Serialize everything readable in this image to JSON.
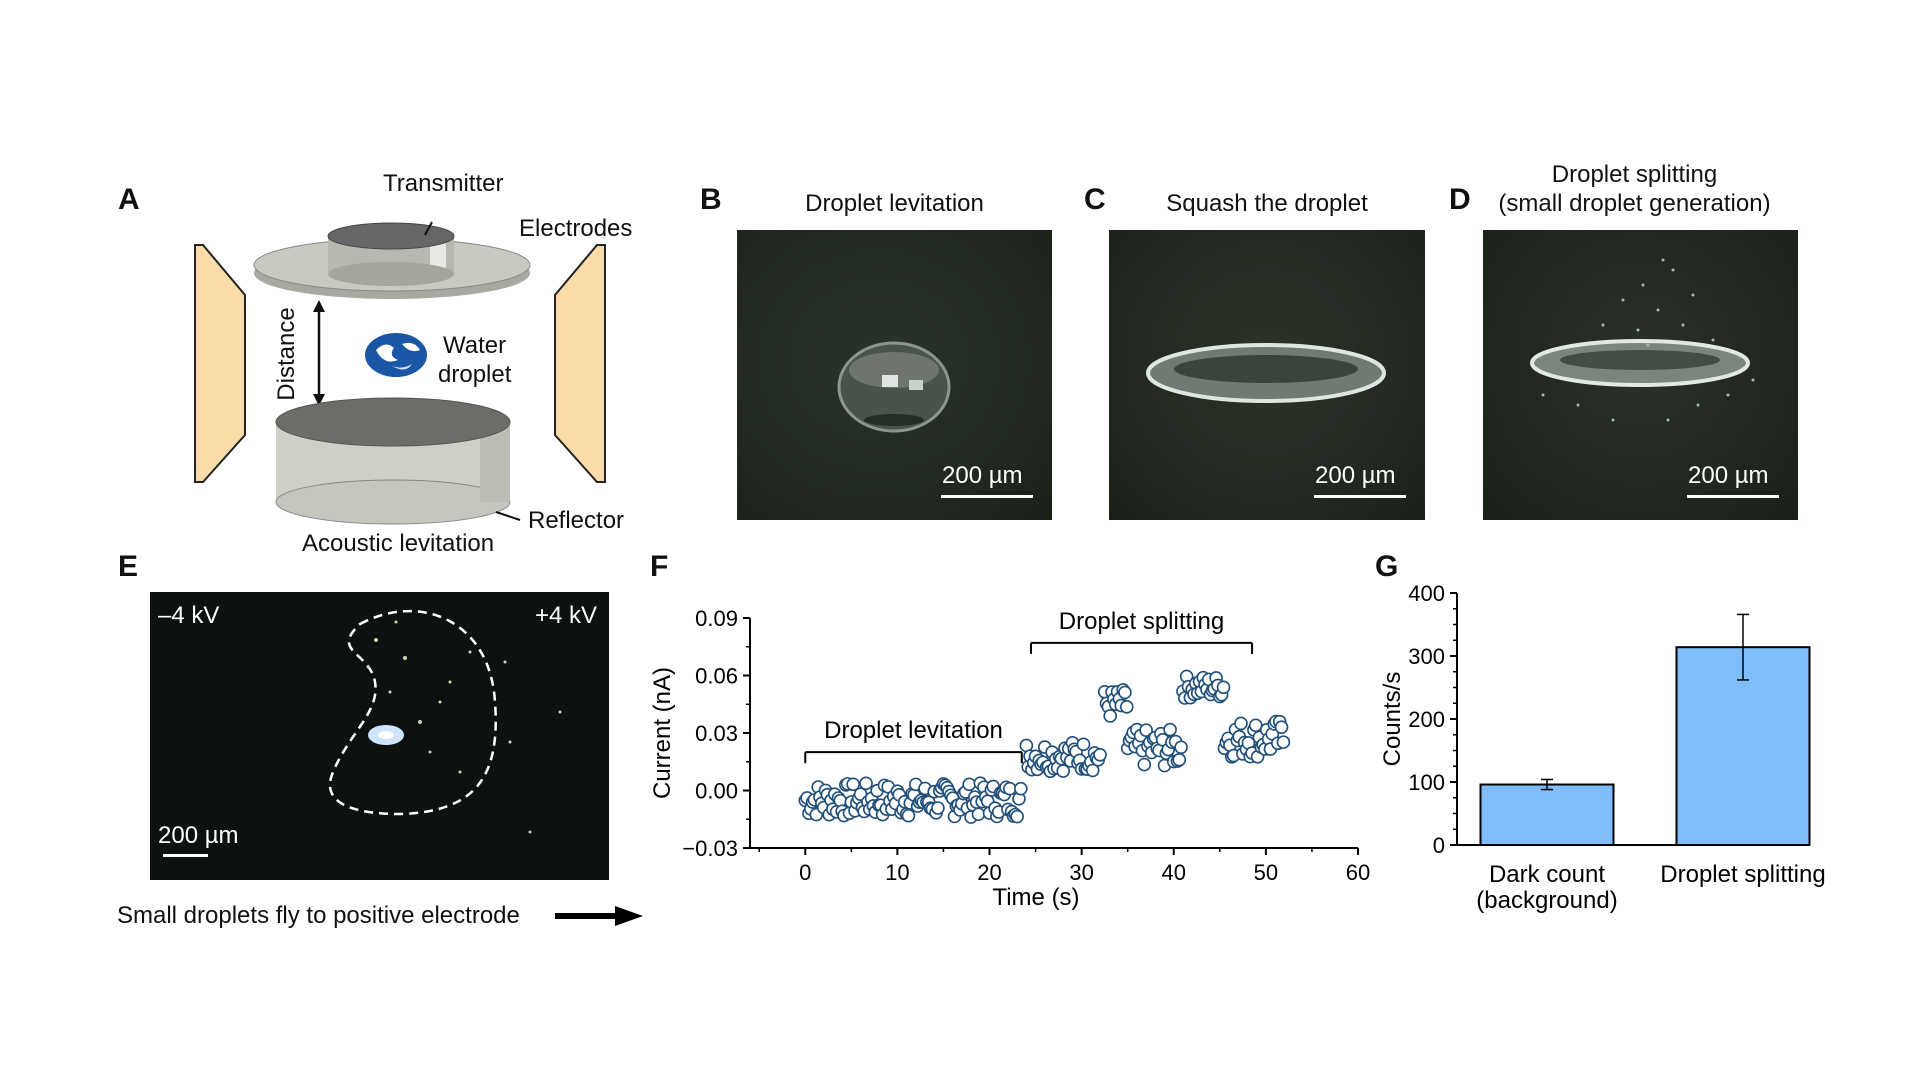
{
  "panelA": {
    "letter": "A",
    "transmitter": "Transmitter",
    "electrodes": "Electrodes",
    "distance": "Distance",
    "water": "Water",
    "droplet": "droplet",
    "reflector": "Reflector",
    "caption": "Acoustic levitation"
  },
  "panelB": {
    "letter": "B",
    "title": "Droplet levitation",
    "scalebar": "200 µm"
  },
  "panelC": {
    "letter": "C",
    "title": "Squash the droplet",
    "scalebar": "200 µm"
  },
  "panelD": {
    "letter": "D",
    "title_line1": "Droplet splitting",
    "title_line2": "(small droplet generation)",
    "scalebar": "200 µm"
  },
  "panelE": {
    "letter": "E",
    "neg_voltage": "–4 kV",
    "pos_voltage": "+4 kV",
    "scalebar": "200 µm",
    "caption": "Small droplets fly to positive electrode"
  },
  "panelF": {
    "letter": "F"
  },
  "panelG": {
    "letter": "G"
  },
  "colors": {
    "bar_fill": "#7fbdfa",
    "marker": "#1f4e79",
    "photo_bg": "#1e2620"
  },
  "chart_data": [
    {
      "type": "scatter",
      "panel": "F",
      "xlabel": "Time (s)",
      "ylabel": "Current (nA)",
      "xlim": [
        -6,
        60
      ],
      "ylim": [
        -0.03,
        0.09
      ],
      "xticks": [
        "0",
        "10",
        "20",
        "30",
        "40",
        "50",
        "60"
      ],
      "yticks": [
        "−0.03",
        "0.00",
        "0.03",
        "0.06",
        "0.09"
      ],
      "annotations": [
        {
          "text": "Droplet levitation",
          "x_range": [
            0,
            23.5
          ],
          "y": 0.02
        },
        {
          "text": "Droplet splitting",
          "x_range": [
            24.5,
            48.5
          ],
          "y": 0.077
        }
      ],
      "series": [
        {
          "name": "current",
          "segments": [
            {
              "x_start": 0,
              "x_end": 23.5,
              "mean_y": -0.005,
              "spread": 0.009
            },
            {
              "x_start": 24,
              "x_end": 32,
              "mean_y": 0.018,
              "spread": 0.008
            },
            {
              "x_start": 32.5,
              "x_end": 35,
              "mean_y": 0.045,
              "spread": 0.008
            },
            {
              "x_start": 35,
              "x_end": 41,
              "mean_y": 0.022,
              "spread": 0.01
            },
            {
              "x_start": 41,
              "x_end": 45.5,
              "mean_y": 0.054,
              "spread": 0.006
            },
            {
              "x_start": 45.5,
              "x_end": 52,
              "mean_y": 0.027,
              "spread": 0.01
            }
          ]
        }
      ]
    },
    {
      "type": "bar",
      "panel": "G",
      "ylabel": "Counts/s",
      "ylim": [
        0,
        400
      ],
      "yticks": [
        "0",
        "100",
        "200",
        "300",
        "400"
      ],
      "categories": [
        {
          "line1": "Dark count",
          "line2": "(background)"
        },
        {
          "line1": "Droplet splitting",
          "line2": ""
        }
      ],
      "values": [
        96,
        314
      ],
      "errors": [
        8,
        52
      ]
    }
  ]
}
